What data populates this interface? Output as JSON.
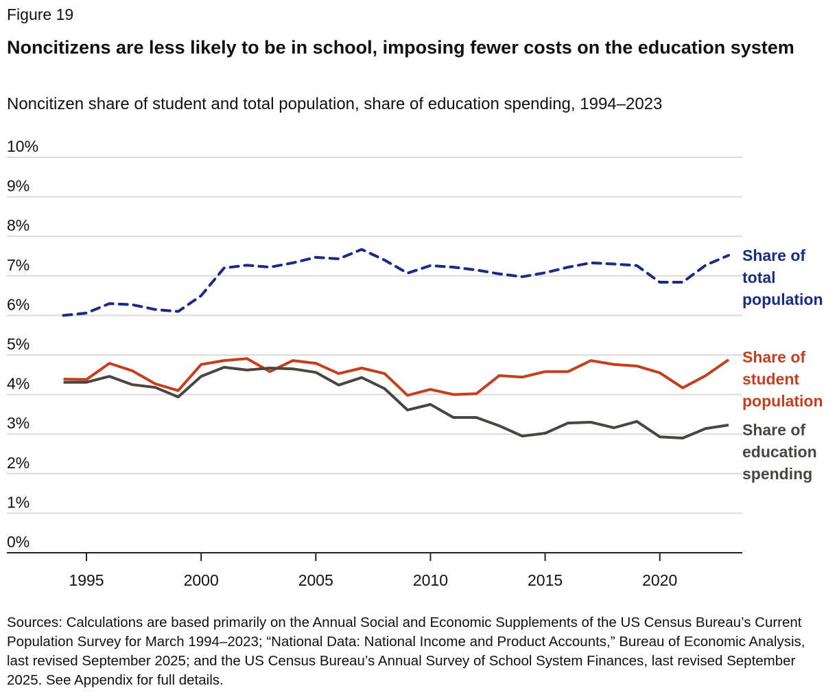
{
  "figure_label": "Figure 19",
  "title": "Noncitizens are less likely to be in school, imposing fewer costs on the education system",
  "subtitle": "Noncitizen share of student and total population, share of education spending, 1994–2023",
  "sources": "Sources: Calculations are based primarily on the Annual Social and Economic Supplements of the US Census Bureau’s Current Population Survey for March 1994–2023; “National Data: National Income and Product Accounts,” Bureau of Economic Analysis, last revised September 2025; and the US Census Bureau’s Annual Survey of School System Finances, last revised September 2025. See Appendix for full details.",
  "chart_data": {
    "type": "line",
    "xlabel": "",
    "ylabel": "",
    "xlim": [
      1994,
      2023
    ],
    "ylim": [
      0,
      10
    ],
    "grid": true,
    "yticks": [
      "0%",
      "1%",
      "2%",
      "3%",
      "4%",
      "5%",
      "6%",
      "7%",
      "8%",
      "9%",
      "10%"
    ],
    "xticks": [
      "1995",
      "2000",
      "2005",
      "2010",
      "2015",
      "2020"
    ],
    "x": [
      1994,
      1995,
      1996,
      1997,
      1998,
      1999,
      2000,
      2001,
      2002,
      2003,
      2004,
      2005,
      2006,
      2007,
      2008,
      2009,
      2010,
      2011,
      2012,
      2013,
      2014,
      2015,
      2016,
      2017,
      2018,
      2019,
      2020,
      2021,
      2022,
      2023
    ],
    "series": [
      {
        "name": "Share of total population",
        "label_lines": [
          "Share of",
          "total",
          "population"
        ],
        "color": "#1b2a88",
        "style": "dashed",
        "values": [
          6.0,
          6.06,
          6.3,
          6.27,
          6.15,
          6.1,
          6.5,
          7.2,
          7.27,
          7.22,
          7.33,
          7.47,
          7.43,
          7.67,
          7.4,
          7.07,
          7.26,
          7.22,
          7.15,
          7.05,
          6.98,
          7.08,
          7.22,
          7.33,
          7.3,
          7.26,
          6.84,
          6.84,
          7.27,
          7.52
        ]
      },
      {
        "name": "Share of student population",
        "label_lines": [
          "Share of",
          "student",
          "population"
        ],
        "color": "#c73e1d",
        "style": "solid",
        "values": [
          4.39,
          4.38,
          4.79,
          4.6,
          4.27,
          4.1,
          4.76,
          4.86,
          4.91,
          4.58,
          4.86,
          4.79,
          4.53,
          4.67,
          4.53,
          3.98,
          4.13,
          4.0,
          4.02,
          4.48,
          4.44,
          4.58,
          4.58,
          4.86,
          4.76,
          4.72,
          4.55,
          4.17,
          4.48,
          4.88
        ]
      },
      {
        "name": "Share of education spending",
        "label_lines": [
          "Share of",
          "education",
          "spending"
        ],
        "color": "#4a4540",
        "style": "solid",
        "values": [
          4.31,
          4.31,
          4.46,
          4.25,
          4.18,
          3.94,
          4.46,
          4.69,
          4.62,
          4.67,
          4.65,
          4.56,
          4.24,
          4.43,
          4.15,
          3.61,
          3.75,
          3.42,
          3.42,
          3.21,
          2.95,
          3.02,
          3.28,
          3.3,
          3.16,
          3.32,
          2.93,
          2.9,
          3.14,
          3.23
        ]
      }
    ]
  }
}
